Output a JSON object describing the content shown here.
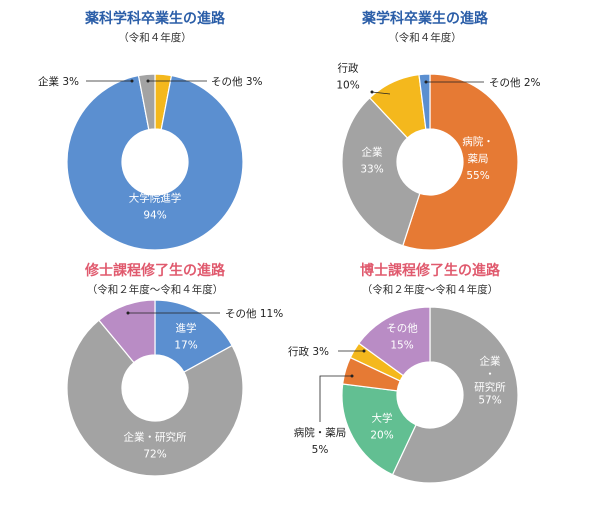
{
  "colors": {
    "blue_title": "#2b5ea8",
    "pink_title": "#e05a6e",
    "blue": "#5b8fd0",
    "gray": "#a3a3a3",
    "yellow": "#f4b81d",
    "orange": "#e67a34",
    "purple": "#b98cc5",
    "green": "#62bf92"
  },
  "chart_data": [
    {
      "type": "pie",
      "title": "薬科学科卒業生の進路",
      "subtitle": "（令和４年度）",
      "slices": [
        {
          "label": "大学院進学",
          "value": 94,
          "value_text": "94%",
          "color": "#5b8fd0",
          "label_style": "inside"
        },
        {
          "label": "企業",
          "value": 3,
          "value_text": "3%",
          "color": "#a3a3a3",
          "label_style": "callout-left"
        },
        {
          "label": "その他",
          "value": 3,
          "value_text": "3%",
          "color": "#f4b81d",
          "label_style": "callout-right"
        }
      ]
    },
    {
      "type": "pie",
      "title": "薬学科卒業生の進路",
      "subtitle": "（令和４年度）",
      "slices": [
        {
          "label": "病院・薬局",
          "value": 55,
          "value_text": "55%",
          "color": "#e67a34",
          "label_style": "inside"
        },
        {
          "label": "企業",
          "value": 33,
          "value_text": "33%",
          "color": "#a3a3a3",
          "label_style": "inside"
        },
        {
          "label": "行政",
          "value": 10,
          "value_text": "10%",
          "color": "#f4b81d",
          "label_style": "outside"
        },
        {
          "label": "その他",
          "value": 2,
          "value_text": "2%",
          "color": "#5b8fd0",
          "label_style": "callout-right"
        }
      ]
    },
    {
      "type": "pie",
      "title": "修士課程修了生の進路",
      "subtitle": "（令和２年度〜令和４年度）",
      "slices": [
        {
          "label": "進学",
          "value": 17,
          "value_text": "17%",
          "color": "#5b8fd0",
          "label_style": "inside"
        },
        {
          "label": "企業・研究所",
          "value": 72,
          "value_text": "72%",
          "color": "#a3a3a3",
          "label_style": "inside"
        },
        {
          "label": "その他",
          "value": 11,
          "value_text": "11%",
          "color": "#b98cc5",
          "label_style": "callout-right"
        }
      ]
    },
    {
      "type": "pie",
      "title": "博士課程修了生の進路",
      "subtitle": "（令和２年度〜令和４年度）",
      "slices": [
        {
          "label": "企業・研究所",
          "value": 57,
          "value_text": "57%",
          "color": "#a3a3a3",
          "label_style": "inside"
        },
        {
          "label": "大学",
          "value": 20,
          "value_text": "20%",
          "color": "#62bf92",
          "label_style": "inside"
        },
        {
          "label": "病院・薬局",
          "value": 5,
          "value_text": "5%",
          "color": "#e67a34",
          "label_style": "callout-left"
        },
        {
          "label": "行政",
          "value": 3,
          "value_text": "3%",
          "color": "#f4b81d",
          "label_style": "callout-left"
        },
        {
          "label": "その他",
          "value": 15,
          "value_text": "15%",
          "color": "#b98cc5",
          "label_style": "inside"
        }
      ]
    }
  ]
}
